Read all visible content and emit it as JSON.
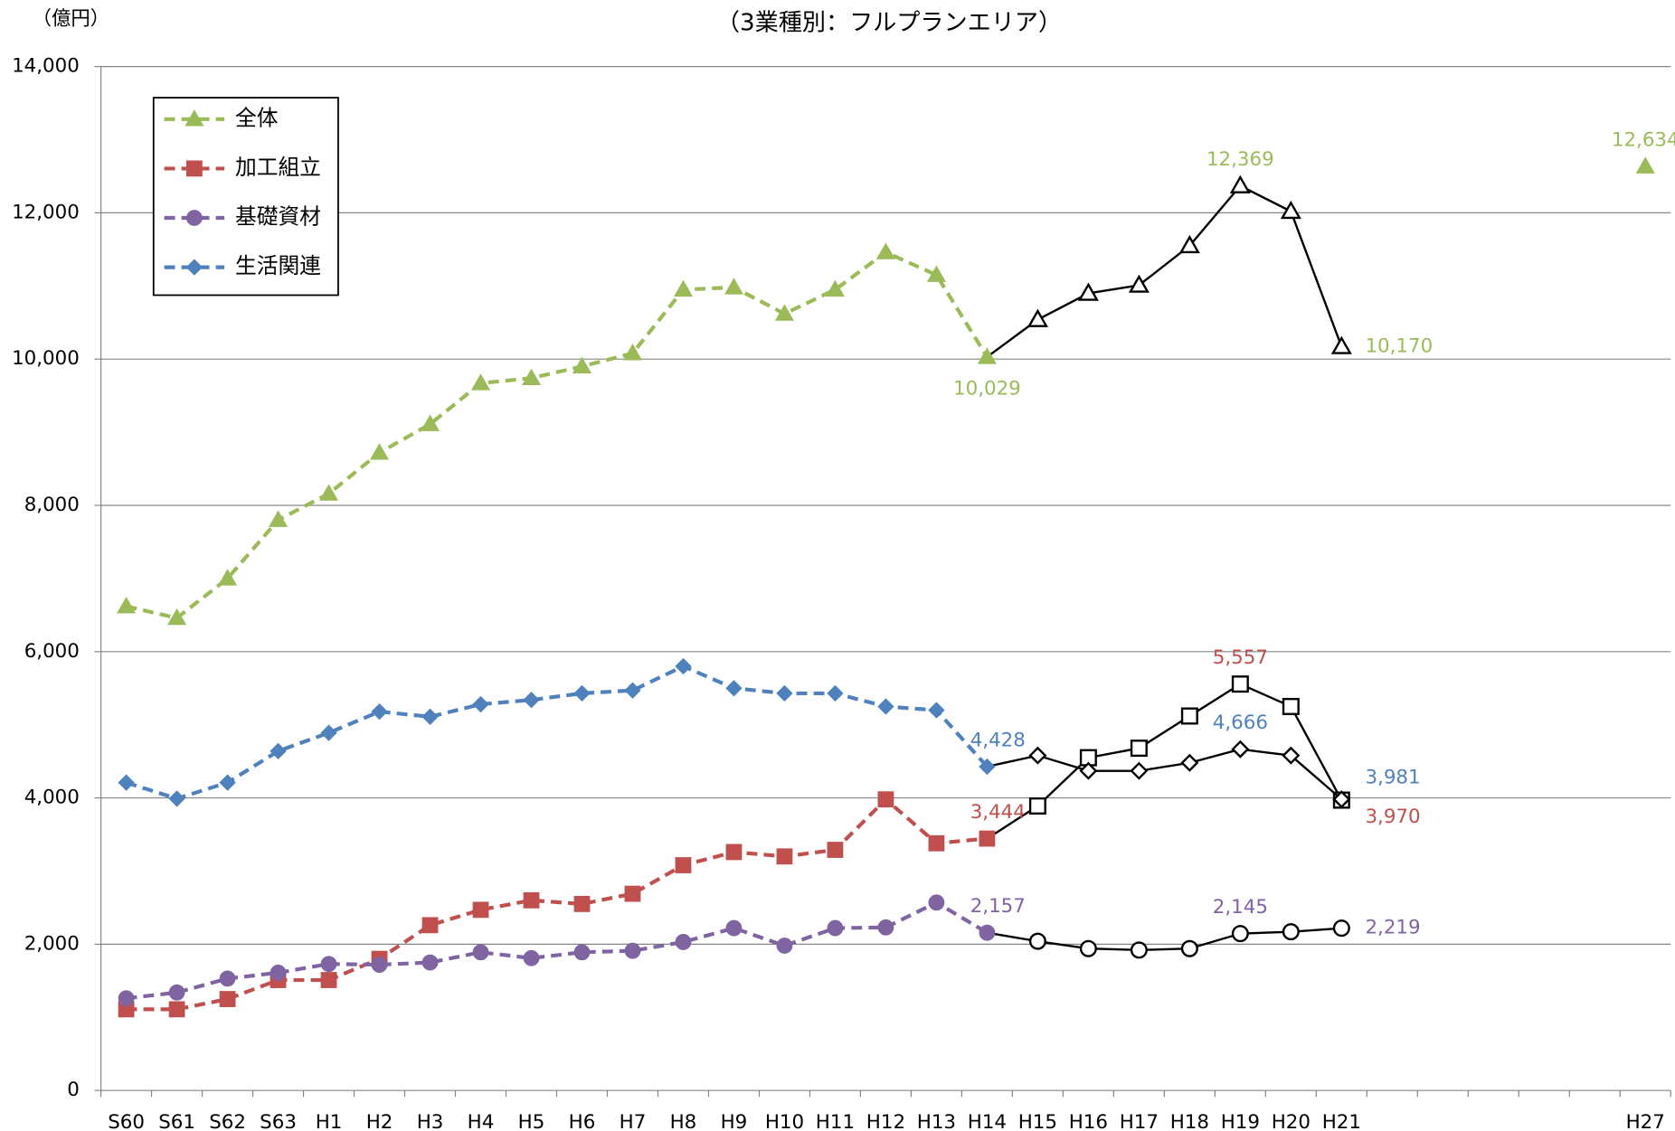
{
  "chart_data": {
    "type": "line",
    "title": "（3業種別：フルプランエリア）",
    "y_label": "（億円）",
    "categories": [
      "S60",
      "S61",
      "S62",
      "S63",
      "H1",
      "H2",
      "H3",
      "H4",
      "H5",
      "H6",
      "H7",
      "H8",
      "H9",
      "H10",
      "H11",
      "H12",
      "H13",
      "H14",
      "H15",
      "H16",
      "H17",
      "H18",
      "H19",
      "H20",
      "H21",
      null,
      null,
      null,
      null,
      null,
      "H27"
    ],
    "forecast_from": "H14",
    "forecast_to": "H21",
    "forecast_color": "#000000",
    "ylim": [
      0,
      14000
    ],
    "yticks": [
      {
        "value": 0,
        "label": "0"
      },
      {
        "value": 2000,
        "label": "2,000"
      },
      {
        "value": 4000,
        "label": "4,000"
      },
      {
        "value": 6000,
        "label": "6,000"
      },
      {
        "value": 8000,
        "label": "8,000"
      },
      {
        "value": 10000,
        "label": "10,000"
      },
      {
        "value": 12000,
        "label": "12,000"
      },
      {
        "value": 14000,
        "label": "14,000"
      }
    ],
    "grid": true,
    "legend": "upper left",
    "series": [
      {
        "name": "全体",
        "color": "#9BBB59",
        "marker": "triangle",
        "values": [
          6620,
          6460,
          7000,
          7800,
          8160,
          8720,
          9110,
          9670,
          9740,
          9900,
          10080,
          10950,
          10980,
          10620,
          10950,
          11460,
          11150,
          10029,
          10540,
          10900,
          11010,
          11550,
          12369,
          12020,
          10170,
          null,
          null,
          null,
          null,
          null,
          12634
        ],
        "value_labels": [
          null,
          null,
          null,
          null,
          null,
          null,
          null,
          null,
          null,
          null,
          null,
          null,
          null,
          null,
          null,
          null,
          null,
          "10,029",
          null,
          null,
          null,
          null,
          "12,369",
          null,
          "10,170",
          null,
          null,
          null,
          null,
          null,
          "12,634"
        ]
      },
      {
        "name": "加工組立",
        "color": "#C0504D",
        "marker": "square",
        "values": [
          1110,
          1110,
          1250,
          1510,
          1510,
          1800,
          2260,
          2470,
          2600,
          2550,
          2690,
          3080,
          3260,
          3200,
          3290,
          3980,
          3380,
          3444,
          3890,
          4550,
          4680,
          5120,
          5557,
          5250,
          3970,
          null,
          null,
          null,
          null,
          null,
          null
        ],
        "value_labels": [
          null,
          null,
          null,
          null,
          null,
          null,
          null,
          null,
          null,
          null,
          null,
          null,
          null,
          null,
          null,
          null,
          null,
          "3,444",
          null,
          null,
          null,
          null,
          "5,557",
          null,
          "3,970",
          null,
          null,
          null,
          null,
          null,
          null
        ]
      },
      {
        "name": "基礎資材",
        "color": "#8064A2",
        "marker": "circle",
        "values": [
          1260,
          1340,
          1530,
          1610,
          1730,
          1720,
          1750,
          1890,
          1810,
          1890,
          1910,
          2030,
          2220,
          1980,
          2220,
          2230,
          2570,
          2157,
          2040,
          1940,
          1920,
          1940,
          2145,
          2170,
          2219,
          null,
          null,
          null,
          null,
          null,
          null
        ],
        "value_labels": [
          null,
          null,
          null,
          null,
          null,
          null,
          null,
          null,
          null,
          null,
          null,
          null,
          null,
          null,
          null,
          null,
          null,
          "2,157",
          null,
          null,
          null,
          null,
          "2,145",
          null,
          "2,219",
          null,
          null,
          null,
          null,
          null,
          null
        ]
      },
      {
        "name": "生活関連",
        "color": "#4F81BD",
        "marker": "diamond",
        "values": [
          4210,
          3990,
          4210,
          4640,
          4890,
          5180,
          5110,
          5280,
          5340,
          5430,
          5470,
          5800,
          5500,
          5430,
          5430,
          5250,
          5200,
          4428,
          4580,
          4370,
          4370,
          4480,
          4666,
          4580,
          3981,
          null,
          null,
          null,
          null,
          null,
          null
        ],
        "value_labels": [
          null,
          null,
          null,
          null,
          null,
          null,
          null,
          null,
          null,
          null,
          null,
          null,
          null,
          null,
          null,
          null,
          null,
          "4,428",
          null,
          null,
          null,
          null,
          "4,666",
          null,
          "3,981",
          null,
          null,
          null,
          null,
          null,
          null
        ]
      }
    ]
  }
}
